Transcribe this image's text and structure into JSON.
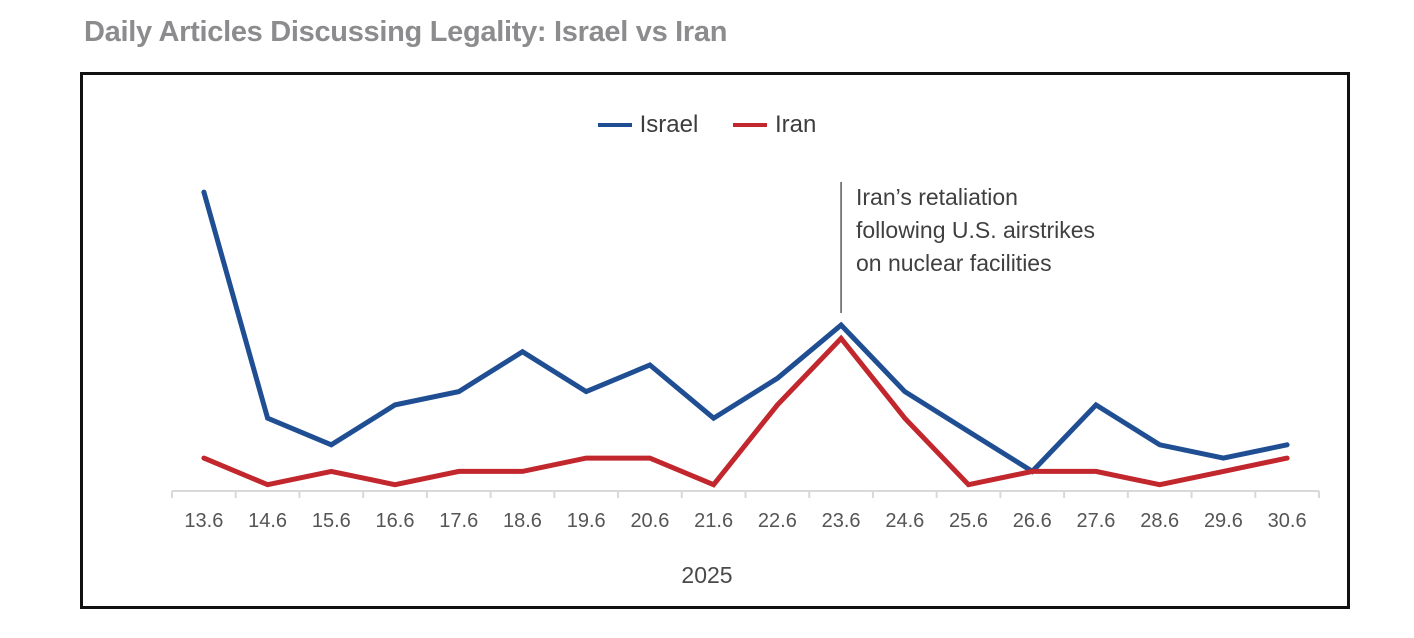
{
  "title": "Daily Articles Discussing Legality: Israel vs Iran",
  "chart_data": {
    "type": "line",
    "title": "Daily Articles Discussing Legality: Israel vs Iran",
    "xlabel": "2025",
    "ylabel": "",
    "categories": [
      "13.6",
      "14.6",
      "15.6",
      "16.6",
      "17.6",
      "18.6",
      "19.6",
      "20.6",
      "21.6",
      "22.6",
      "23.6",
      "24.6",
      "25.6",
      "26.6",
      "27.6",
      "28.6",
      "29.6",
      "30.6"
    ],
    "series": [
      {
        "name": "Israel",
        "color": "#1f4e93",
        "values": [
          23,
          6,
          4,
          7,
          8,
          11,
          8,
          10,
          6,
          9,
          13,
          8,
          5,
          2,
          7,
          4,
          3,
          4
        ]
      },
      {
        "name": "Iran",
        "color": "#c1272d",
        "values": [
          3,
          1,
          2,
          1,
          2,
          2,
          3,
          3,
          1,
          7,
          12,
          6,
          1,
          2,
          2,
          1,
          2,
          3
        ]
      }
    ],
    "ylim": [
      0,
      24
    ],
    "grid": false,
    "y_axis_visible": false,
    "legend_position": "top-center",
    "annotations": [
      {
        "category": "23.6",
        "lines": [
          "Iran’s retaliation",
          "following U.S. airstrikes",
          "on nuclear facilities"
        ]
      }
    ]
  }
}
